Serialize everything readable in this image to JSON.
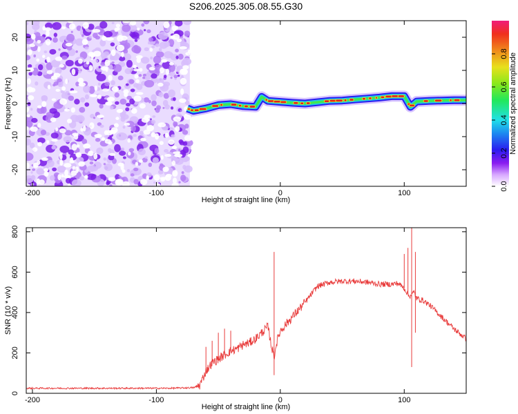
{
  "title": "S206.2025.305.08.55.G30",
  "colors": {
    "snr_line": "#e83a3a",
    "noise": "#8b35e6",
    "band_low": "#2a1cf0",
    "band_mid": "#21c8e8",
    "band_hi": "#e02020"
  },
  "chart_data": [
    {
      "type": "heatmap",
      "xlabel": "Height of straight line (km)",
      "ylabel": "Frequency (Hz)",
      "xlim": [
        -205,
        150
      ],
      "ylim": [
        -25,
        25
      ],
      "xticks": [
        -200,
        -100,
        0,
        100
      ],
      "yticks": [
        -20,
        -10,
        0,
        10,
        20
      ],
      "noise_region_x": [
        -205,
        -73
      ],
      "tonal_track": {
        "x": [
          -75,
          -70,
          -60,
          -50,
          -40,
          -30,
          -20,
          -15,
          -10,
          0,
          10,
          20,
          30,
          40,
          50,
          60,
          70,
          80,
          90,
          100,
          105,
          110,
          120,
          130,
          140,
          150
        ],
        "freq": [
          -1.5,
          -2.2,
          -1.5,
          -0.5,
          -0.2,
          -0.8,
          -1.0,
          2.0,
          0.8,
          0.5,
          0.2,
          0.0,
          0.4,
          0.8,
          0.9,
          1.2,
          1.5,
          1.8,
          2.2,
          2.2,
          -1.0,
          0.6,
          0.8,
          0.9,
          1.0,
          1.0
        ]
      },
      "colorbar": {
        "label": "Normalized spectral amplitude",
        "ticks": [
          0.0,
          0.2,
          0.4,
          0.6,
          0.8
        ],
        "range": [
          0,
          1
        ]
      },
      "grid": false
    },
    {
      "type": "line",
      "xlabel": "Height of straight line (km)",
      "ylabel": "SNR (10 * v/v)",
      "xlim": [
        -205,
        150
      ],
      "ylim": [
        0,
        820
      ],
      "xticks": [
        -200,
        -100,
        0,
        100
      ],
      "yticks": [
        0,
        200,
        400,
        600,
        800
      ],
      "series": [
        {
          "x": [
            -205,
            -180,
            -150,
            -120,
            -90,
            -70,
            -65,
            -60,
            -55,
            -50,
            -45,
            -40,
            -35,
            -30,
            -25,
            -20,
            -15,
            -10,
            -7,
            -5,
            -3,
            0,
            10,
            20,
            25,
            30,
            40,
            50,
            60,
            70,
            80,
            90,
            95,
            100,
            102,
            104,
            106,
            108,
            110,
            115,
            120,
            130,
            140,
            150
          ],
          "y": [
            25,
            25,
            25,
            25,
            25,
            28,
            40,
            110,
            150,
            170,
            190,
            210,
            220,
            240,
            250,
            270,
            300,
            330,
            230,
            180,
            250,
            310,
            380,
            450,
            490,
            530,
            550,
            555,
            555,
            550,
            540,
            540,
            545,
            520,
            500,
            480,
            490,
            500,
            470,
            460,
            440,
            380,
            320,
            270
          ]
        }
      ],
      "spikes": [
        {
          "x": -60,
          "y": 230
        },
        {
          "x": -55,
          "y": 260
        },
        {
          "x": -50,
          "y": 300
        },
        {
          "x": -45,
          "y": 320
        },
        {
          "x": -40,
          "y": 310
        },
        {
          "x": -5,
          "y": 700
        },
        {
          "x": -5,
          "y": 90
        },
        {
          "x": 100,
          "y": 690
        },
        {
          "x": 103,
          "y": 720
        },
        {
          "x": 106,
          "y": 820
        },
        {
          "x": 106,
          "y": 130
        },
        {
          "x": 109,
          "y": 700
        },
        {
          "x": 109,
          "y": 300
        }
      ],
      "grid": false
    }
  ]
}
